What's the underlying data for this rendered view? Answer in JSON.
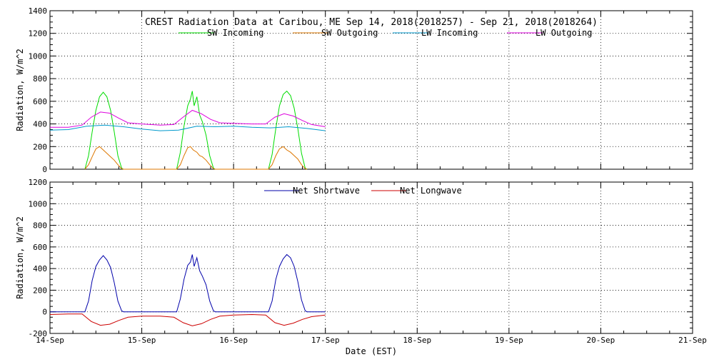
{
  "chart_data": [
    {
      "type": "line",
      "title": "CREST Radiation Data at Caribou, ME   Sep 14, 2018(2018257) - Sep 21, 2018(2018264)",
      "ylabel": "Radiation, W/m^2",
      "xlabel": "",
      "ylim": [
        0,
        1400
      ],
      "yticks": [
        0,
        200,
        400,
        600,
        800,
        1000,
        1200,
        1400
      ],
      "xlim": [
        0,
        7
      ],
      "grid": true,
      "legend": "top",
      "series": [
        {
          "name": "SW Incoming",
          "color": "#00dd00",
          "x": [
            0.38,
            0.42,
            0.46,
            0.5,
            0.54,
            0.58,
            0.62,
            0.66,
            0.7,
            0.74,
            0.78,
            0.8,
            1.38,
            1.42,
            1.46,
            1.5,
            1.53,
            1.55,
            1.57,
            1.6,
            1.63,
            1.66,
            1.7,
            1.74,
            1.78,
            1.8,
            2.38,
            2.42,
            2.46,
            2.5,
            2.54,
            2.58,
            2.62,
            2.66,
            2.7,
            2.74,
            2.78,
            2.8
          ],
          "values": [
            0,
            120,
            330,
            520,
            640,
            680,
            640,
            520,
            330,
            120,
            10,
            0,
            0,
            150,
            380,
            560,
            620,
            690,
            560,
            640,
            480,
            420,
            300,
            120,
            10,
            0,
            0,
            130,
            360,
            560,
            660,
            690,
            650,
            540,
            360,
            140,
            10,
            0
          ]
        },
        {
          "name": "SW Outgoing",
          "color": "#dd7700",
          "x": [
            0.38,
            0.42,
            0.46,
            0.5,
            0.54,
            0.58,
            0.62,
            0.66,
            0.7,
            0.74,
            0.78,
            0.8,
            1.38,
            1.42,
            1.46,
            1.5,
            1.53,
            1.56,
            1.6,
            1.63,
            1.66,
            1.7,
            1.74,
            1.78,
            1.8,
            2.38,
            2.42,
            2.46,
            2.5,
            2.54,
            2.58,
            2.62,
            2.66,
            2.7,
            2.74,
            2.78,
            2.8
          ],
          "values": [
            0,
            40,
            110,
            180,
            200,
            170,
            140,
            110,
            80,
            40,
            5,
            0,
            0,
            40,
            120,
            190,
            200,
            170,
            150,
            120,
            110,
            80,
            40,
            5,
            0,
            0,
            40,
            120,
            180,
            200,
            170,
            150,
            120,
            90,
            40,
            5,
            0
          ]
        },
        {
          "name": "LW Incoming",
          "color": "#0099cc",
          "x": [
            0,
            0.2,
            0.4,
            0.6,
            0.8,
            1.0,
            1.2,
            1.4,
            1.6,
            1.8,
            2.0,
            2.2,
            2.4,
            2.6,
            2.8,
            3.0
          ],
          "values": [
            345,
            350,
            380,
            390,
            375,
            355,
            340,
            345,
            380,
            375,
            380,
            370,
            365,
            375,
            360,
            340
          ]
        },
        {
          "name": "LW Outgoing",
          "color": "#dd00dd",
          "x": [
            0,
            0.2,
            0.35,
            0.45,
            0.55,
            0.65,
            0.75,
            0.85,
            1.0,
            1.2,
            1.35,
            1.45,
            1.55,
            1.65,
            1.75,
            1.85,
            2.0,
            2.2,
            2.35,
            2.45,
            2.55,
            2.65,
            2.75,
            2.85,
            3.0
          ],
          "values": [
            370,
            370,
            390,
            460,
            505,
            495,
            450,
            410,
            400,
            390,
            395,
            460,
            520,
            490,
            440,
            410,
            405,
            400,
            400,
            460,
            490,
            470,
            430,
            395,
            375
          ]
        }
      ]
    },
    {
      "type": "line",
      "title": "",
      "ylabel": "Radiation, W/m^2",
      "xlabel": "Date (EST)",
      "ylim": [
        -200,
        1200
      ],
      "yticks": [
        -200,
        0,
        200,
        400,
        600,
        800,
        1000,
        1200
      ],
      "xlim": [
        0,
        7
      ],
      "categories": [
        "14-Sep",
        "15-Sep",
        "16-Sep",
        "17-Sep",
        "18-Sep",
        "19-Sep",
        "20-Sep",
        "21-Sep"
      ],
      "grid": true,
      "legend": "top",
      "series": [
        {
          "name": "Net Shortwave",
          "color": "#0000aa",
          "x": [
            0,
            0.38,
            0.42,
            0.46,
            0.5,
            0.54,
            0.58,
            0.62,
            0.66,
            0.7,
            0.74,
            0.78,
            0.8,
            1.0,
            1.38,
            1.42,
            1.46,
            1.5,
            1.53,
            1.55,
            1.57,
            1.6,
            1.63,
            1.66,
            1.7,
            1.74,
            1.78,
            1.8,
            2.0,
            2.38,
            2.42,
            2.46,
            2.5,
            2.54,
            2.58,
            2.62,
            2.66,
            2.7,
            2.74,
            2.78,
            2.8,
            3.0
          ],
          "values": [
            0,
            0,
            100,
            290,
            420,
            480,
            520,
            480,
            410,
            270,
            100,
            10,
            0,
            0,
            0,
            120,
            300,
            430,
            460,
            530,
            420,
            500,
            380,
            330,
            250,
            100,
            10,
            0,
            0,
            0,
            100,
            300,
            420,
            490,
            530,
            500,
            420,
            280,
            110,
            10,
            0,
            0
          ]
        },
        {
          "name": "Net Longwave",
          "color": "#cc0000",
          "x": [
            0,
            0.2,
            0.35,
            0.45,
            0.55,
            0.65,
            0.75,
            0.85,
            1.0,
            1.2,
            1.35,
            1.45,
            1.55,
            1.65,
            1.75,
            1.85,
            2.0,
            2.2,
            2.35,
            2.45,
            2.55,
            2.65,
            2.75,
            2.85,
            3.0
          ],
          "values": [
            -25,
            -20,
            -20,
            -90,
            -125,
            -115,
            -80,
            -50,
            -40,
            -40,
            -50,
            -100,
            -130,
            -110,
            -70,
            -40,
            -30,
            -25,
            -30,
            -100,
            -125,
            -105,
            -70,
            -45,
            -30
          ]
        }
      ]
    }
  ]
}
